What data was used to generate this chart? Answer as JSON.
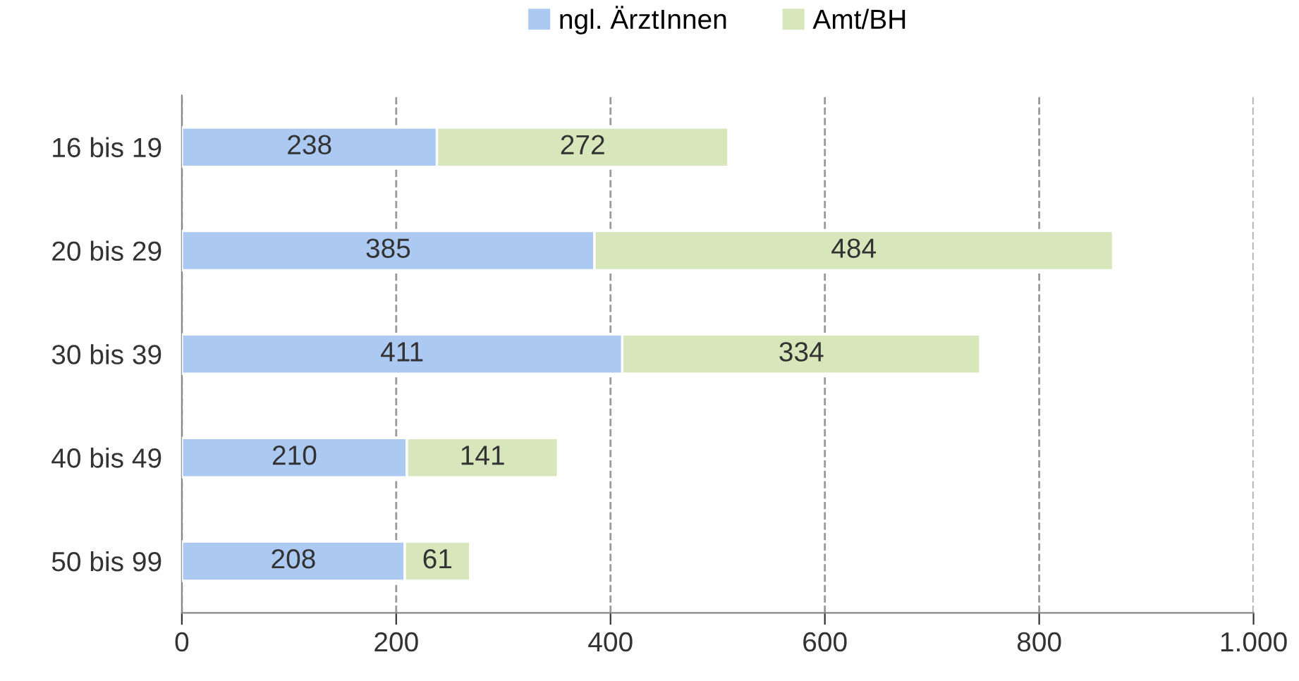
{
  "chart_data": {
    "type": "bar",
    "orientation": "horizontal",
    "stacked": true,
    "categories": [
      "16 bis 19",
      "20 bis 29",
      "30 bis 39",
      "40 bis 49",
      "50 bis 99"
    ],
    "series": [
      {
        "name": "ngl. ÄrztInnen",
        "color": "#abc9f1",
        "values": [
          238,
          385,
          411,
          210,
          208
        ]
      },
      {
        "name": "Amt/BH",
        "color": "#d8e6bc",
        "values": [
          272,
          484,
          334,
          141,
          61
        ]
      }
    ],
    "xlim": [
      0,
      1000
    ],
    "xticks": [
      0,
      200,
      400,
      600,
      800,
      {
        "value": 1000,
        "label": "1.000"
      }
    ],
    "grid": "x",
    "legend": "top",
    "data_labels": true
  }
}
